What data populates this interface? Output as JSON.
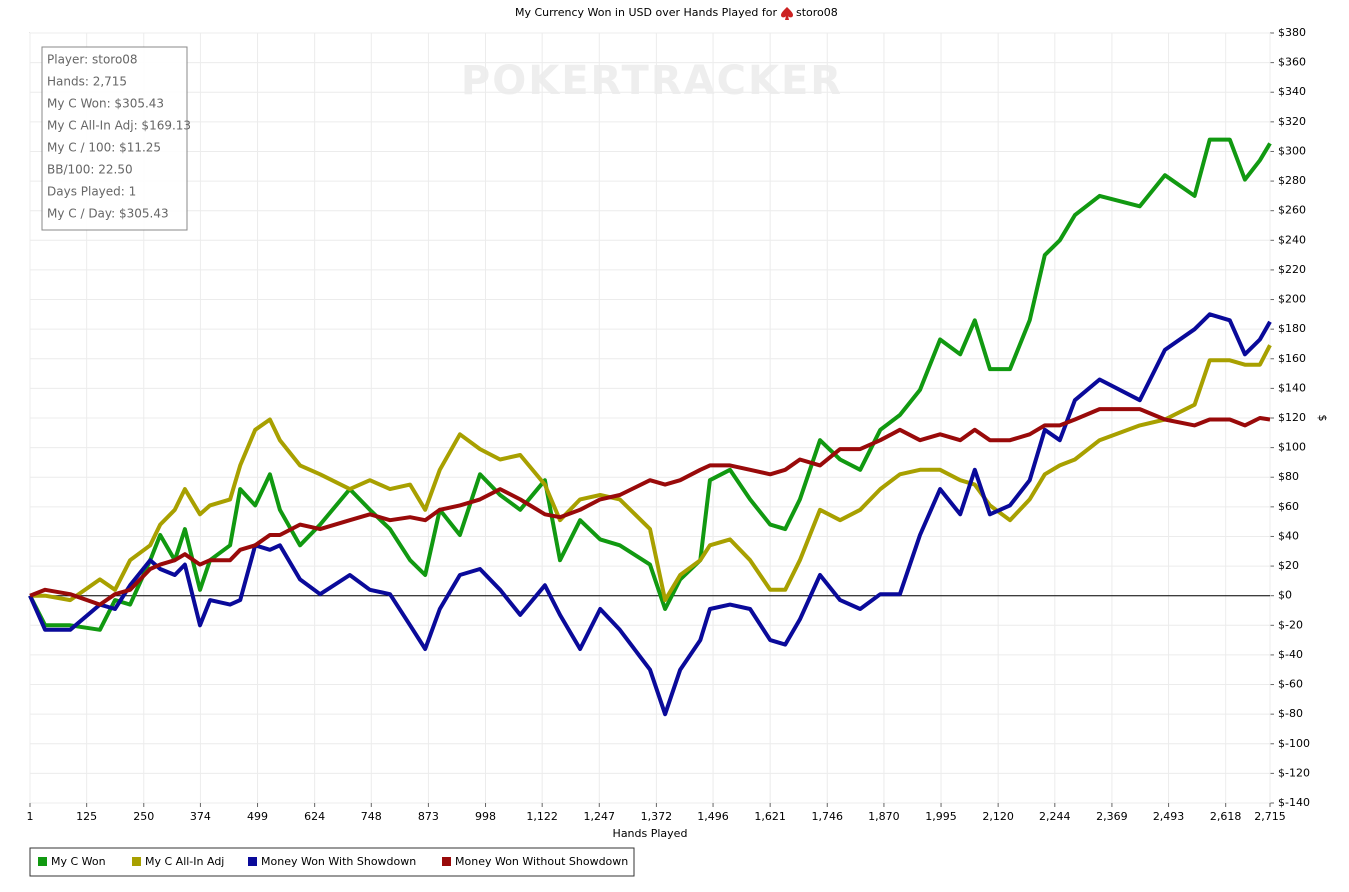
{
  "chart_data": {
    "type": "line",
    "title": "My Currency Won in USD over Hands Played for",
    "title_player": "storo08",
    "watermark": "POKERTRACKER",
    "xlabel": "Hands Played",
    "ylabel": "$",
    "stats": [
      "Player: storo08",
      "Hands: 2,715",
      "My C Won: $305.43",
      "My C All-In Adj: $169.13",
      "My C / 100: $11.25",
      "BB/100: 22.50",
      "Days Played: 1",
      "My C / Day: $305.43"
    ],
    "x": [
      1,
      34,
      89,
      154,
      187,
      220,
      264,
      286,
      318,
      340,
      373,
      395,
      439,
      461,
      494,
      526,
      548,
      592,
      636,
      701,
      745,
      789,
      833,
      866,
      898,
      942,
      986,
      1030,
      1074,
      1128,
      1161,
      1205,
      1249,
      1292,
      1358,
      1391,
      1424,
      1468,
      1489,
      1533,
      1577,
      1621,
      1654,
      1686,
      1730,
      1774,
      1818,
      1862,
      1905,
      1949,
      1993,
      2037,
      2069,
      2102,
      2146,
      2189,
      2222,
      2255,
      2288,
      2342,
      2430,
      2485,
      2550,
      2583,
      2627,
      2660,
      2693,
      2715
    ],
    "series": [
      {
        "name": "My C Won",
        "color": "#119911",
        "values": [
          0,
          -20,
          -20,
          -23,
          -3,
          -6,
          24,
          41,
          24,
          45,
          4,
          24,
          34,
          72,
          61,
          82,
          58,
          34,
          48,
          72,
          58,
          45,
          24,
          14,
          58,
          41,
          82,
          68,
          58,
          78,
          24,
          51,
          38,
          34,
          21,
          -9,
          11,
          24,
          78,
          85,
          65,
          48,
          45,
          65,
          105,
          92,
          85,
          112,
          122,
          139,
          173,
          163,
          186,
          153,
          153,
          186,
          230,
          240,
          257,
          270,
          263,
          284,
          270,
          308,
          308,
          281,
          294,
          305.43
        ]
      },
      {
        "name": "My C All-In Adj",
        "color": "#a8a000",
        "values": [
          0,
          0,
          -3,
          11,
          4,
          24,
          34,
          48,
          58,
          72,
          55,
          61,
          65,
          88,
          112,
          119,
          105,
          88,
          82,
          72,
          78,
          72,
          75,
          58,
          85,
          109,
          99,
          92,
          95,
          75,
          51,
          65,
          68,
          65,
          45,
          -3,
          14,
          24,
          34,
          38,
          24,
          4,
          4,
          24,
          58,
          51,
          58,
          72,
          82,
          85,
          85,
          78,
          75,
          61,
          51,
          65,
          82,
          88,
          92,
          105,
          115,
          119,
          129,
          159,
          159,
          156,
          156,
          169.13
        ]
      },
      {
        "name": "Money Won With Showdown",
        "color": "#0a0a9a",
        "values": [
          0,
          -23,
          -23,
          -6,
          -9,
          7,
          24,
          18,
          14,
          21,
          -20,
          -3,
          -6,
          -3,
          34,
          31,
          34,
          11,
          1,
          14,
          4,
          1,
          -20,
          -36,
          -9,
          14,
          18,
          4,
          -13,
          7,
          -13,
          -36,
          -9,
          -23,
          -50,
          -80,
          -50,
          -30,
          -9,
          -6,
          -9,
          -30,
          -33,
          -16,
          14,
          -3,
          -9,
          1,
          1,
          41,
          72,
          55,
          85,
          55,
          61,
          78,
          112,
          105,
          132,
          146,
          132,
          166,
          180,
          190,
          186,
          163,
          173,
          185
        ]
      },
      {
        "name": "Money Won Without Showdown",
        "color": "#990a0a",
        "values": [
          0,
          4,
          1,
          -6,
          1,
          4,
          18,
          21,
          24,
          28,
          21,
          24,
          24,
          31,
          34,
          41,
          41,
          48,
          45,
          51,
          55,
          51,
          53,
          51,
          58,
          61,
          65,
          72,
          65,
          55,
          53,
          58,
          65,
          68,
          78,
          75,
          78,
          85,
          88,
          88,
          85,
          82,
          85,
          92,
          88,
          99,
          99,
          105,
          112,
          105,
          109,
          105,
          112,
          105,
          105,
          109,
          115,
          115,
          119,
          126,
          126,
          119,
          115,
          119,
          119,
          115,
          120,
          119
        ]
      }
    ],
    "xlim": [
      1,
      2715
    ],
    "xticks": [
      1,
      125,
      250,
      374,
      499,
      624,
      748,
      873,
      998,
      {
        "value": 1122,
        "label": "1,122"
      },
      {
        "value": 1247,
        "label": "1,247"
      },
      {
        "value": 1372,
        "label": "1,372"
      },
      {
        "value": 1496,
        "label": "1,496"
      },
      {
        "value": 1621,
        "label": "1,621"
      },
      {
        "value": 1746,
        "label": "1,746"
      },
      {
        "value": 1870,
        "label": "1,870"
      },
      {
        "value": 1995,
        "label": "1,995"
      },
      {
        "value": 2120,
        "label": "2,120"
      },
      {
        "value": 2244,
        "label": "2,244"
      },
      {
        "value": 2369,
        "label": "2,369"
      },
      {
        "value": 2493,
        "label": "2,493"
      },
      {
        "value": 2618,
        "label": "2,618"
      },
      {
        "value": 2715,
        "label": "2,715"
      }
    ],
    "ylim": [
      -140,
      380
    ],
    "yticks": [
      {
        "value": 380,
        "label": "$380"
      },
      {
        "value": 360,
        "label": "$360"
      },
      {
        "value": 340,
        "label": "$340"
      },
      {
        "value": 320,
        "label": "$320"
      },
      {
        "value": 300,
        "label": "$300"
      },
      {
        "value": 280,
        "label": "$280"
      },
      {
        "value": 260,
        "label": "$260"
      },
      {
        "value": 240,
        "label": "$240"
      },
      {
        "value": 220,
        "label": "$220"
      },
      {
        "value": 200,
        "label": "$200"
      },
      {
        "value": 180,
        "label": "$180"
      },
      {
        "value": 160,
        "label": "$160"
      },
      {
        "value": 140,
        "label": "$140"
      },
      {
        "value": 120,
        "label": "$120"
      },
      {
        "value": 100,
        "label": "$100"
      },
      {
        "value": 80,
        "label": "$80"
      },
      {
        "value": 60,
        "label": "$60"
      },
      {
        "value": 40,
        "label": "$40"
      },
      {
        "value": 20,
        "label": "$20"
      },
      {
        "value": 0,
        "label": "$0"
      },
      {
        "value": -20,
        "label": "$-20"
      },
      {
        "value": -40,
        "label": "$-40"
      },
      {
        "value": -60,
        "label": "$-60"
      },
      {
        "value": -80,
        "label": "$-80"
      },
      {
        "value": -100,
        "label": "$-100"
      },
      {
        "value": -120,
        "label": "$-120"
      },
      {
        "value": -140,
        "label": "$-140"
      }
    ],
    "grid": true,
    "legend": "bottom-left"
  }
}
